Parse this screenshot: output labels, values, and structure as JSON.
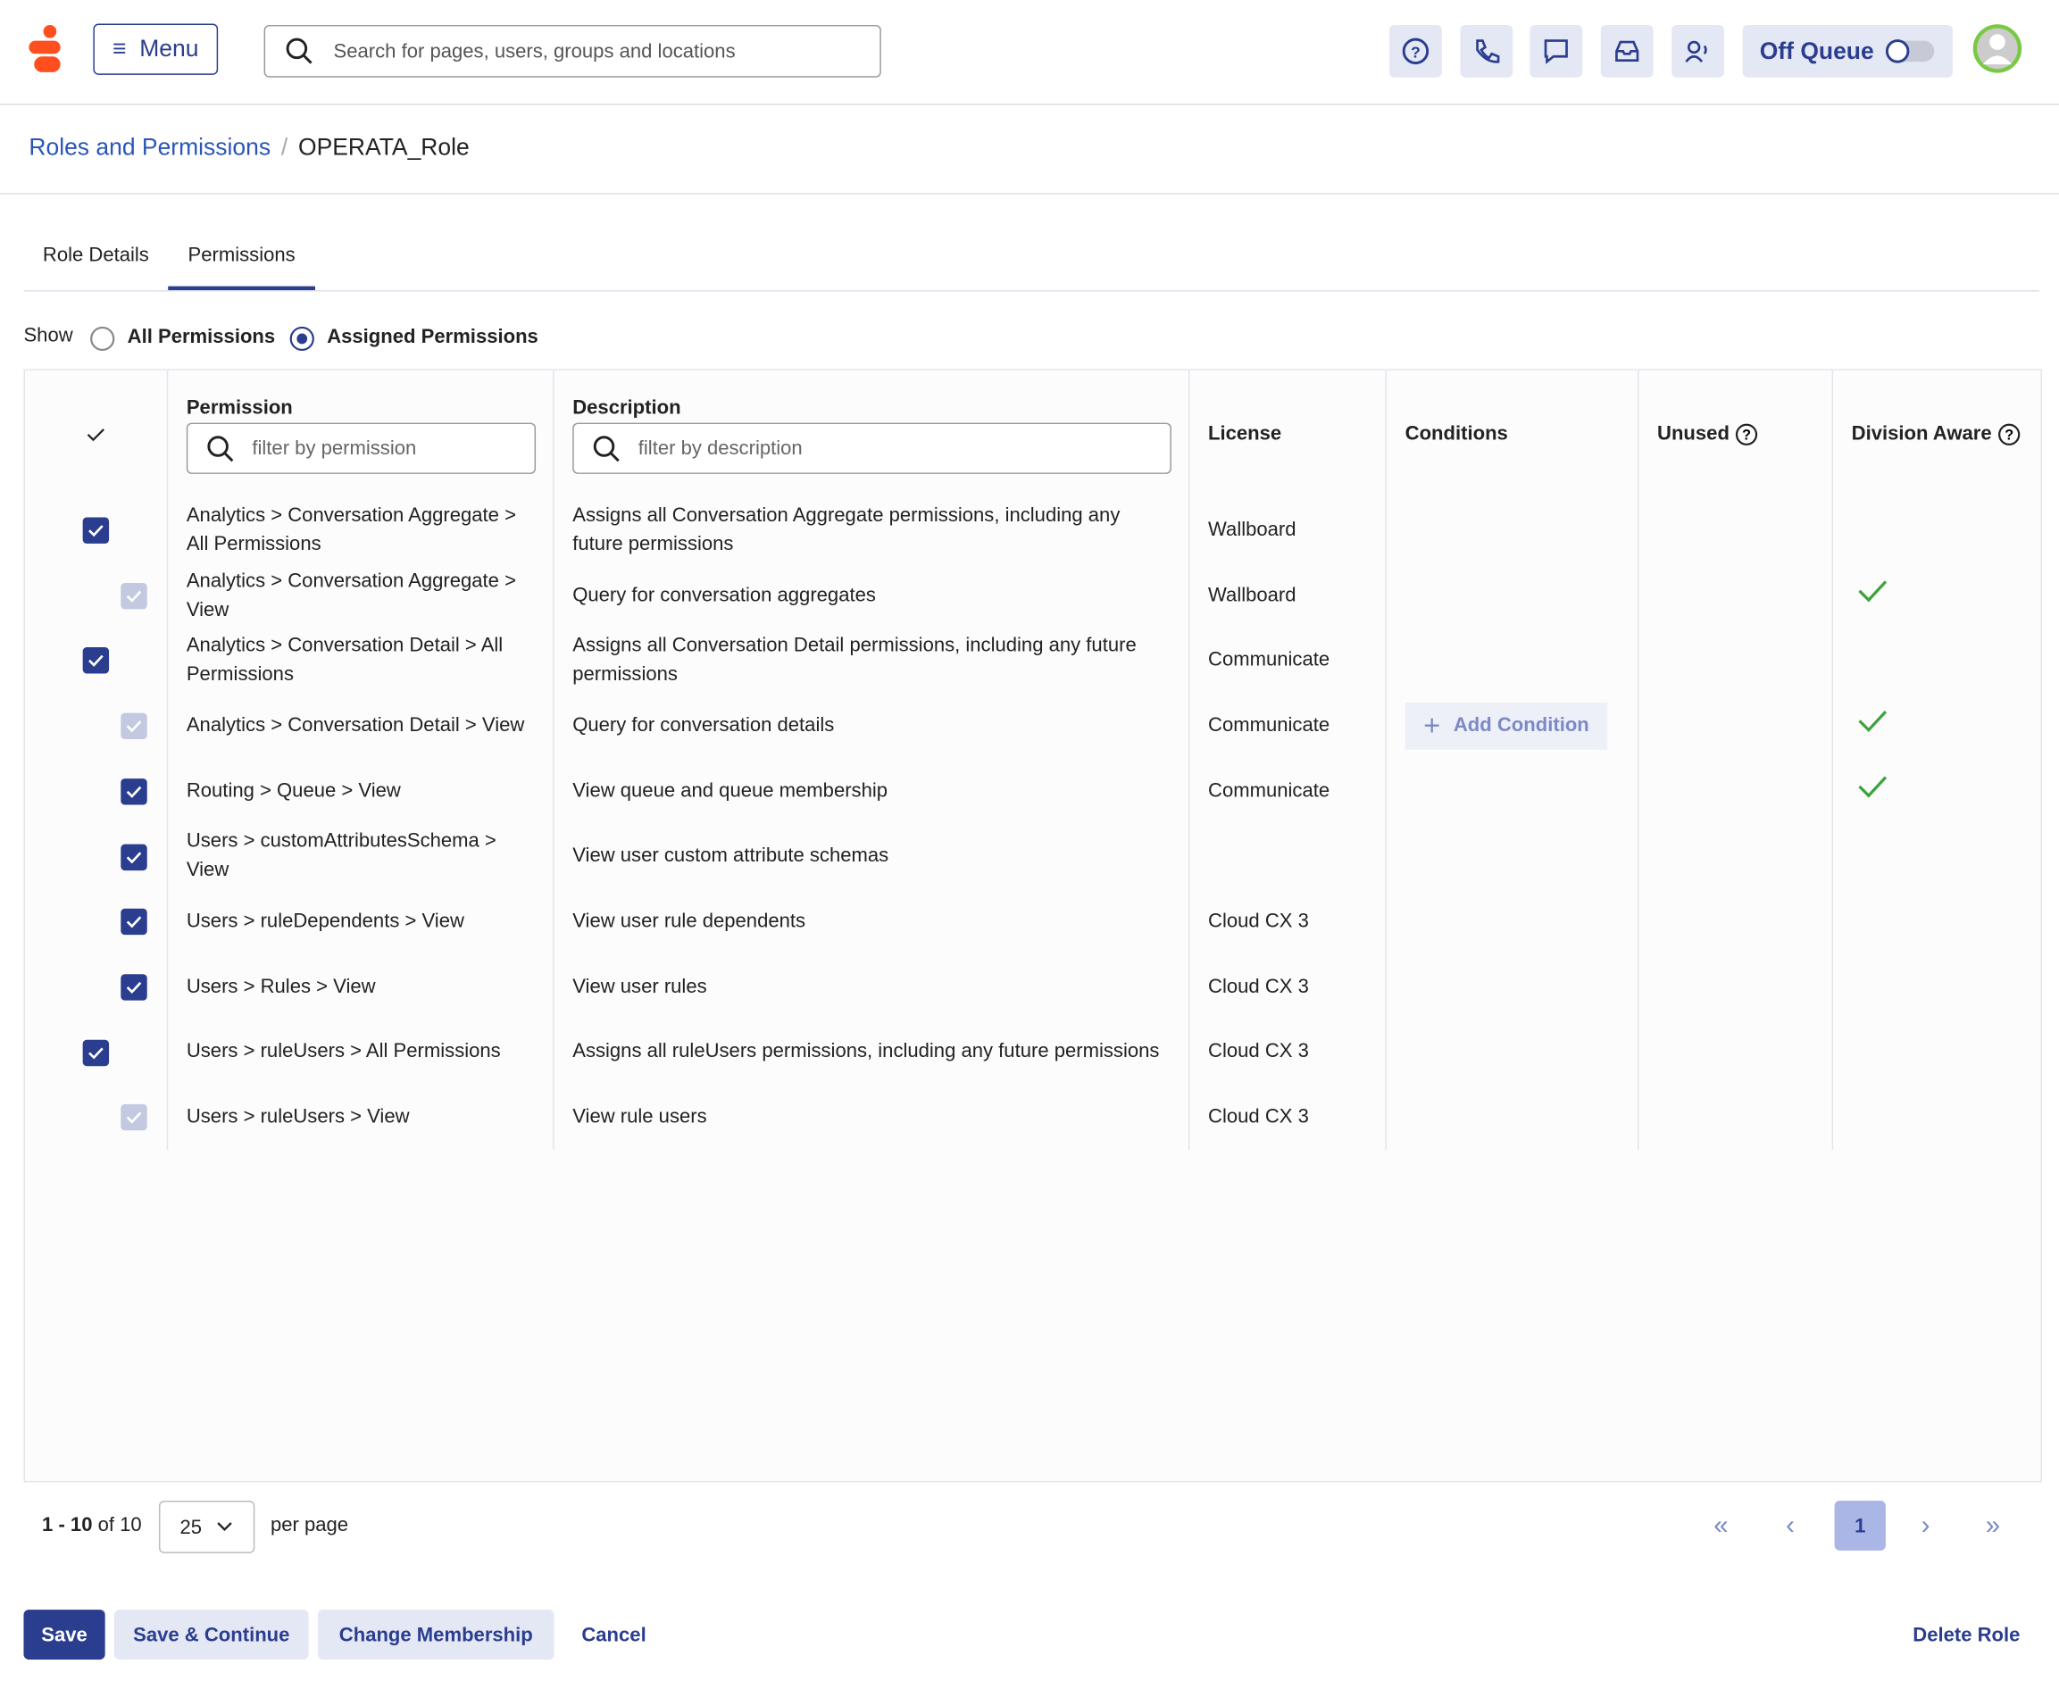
{
  "header": {
    "menu": "Menu",
    "search_placeholder": "Search for pages, users, groups and locations",
    "status": "Off Queue"
  },
  "breadcrumb": [
    "Roles and Permissions",
    "OPERATA_Role"
  ],
  "tabs": {
    "items": [
      "Role Details",
      "Permissions"
    ],
    "active": 1
  },
  "show": {
    "label": "Show",
    "options": [
      "All Permissions",
      "Assigned Permissions"
    ],
    "selected": 1
  },
  "table": {
    "columns": [
      "Permission",
      "Description",
      "License",
      "Conditions",
      "Unused",
      "Division Aware"
    ],
    "filters": [
      "filter by permission",
      "filter by description"
    ],
    "rows": [
      {
        "permission": "Analytics > Conversation Aggregate > All Permissions",
        "description": "Assigns all Conversation Aggregate permissions, including any future permissions",
        "license": "Wallboard",
        "check": "checked",
        "indent": false,
        "division_aware": false
      },
      {
        "permission": "Analytics > Conversation Aggregate > View",
        "description": "Query for conversation aggregates",
        "license": "Wallboard",
        "check": "inherited",
        "indent": true,
        "division_aware": true
      },
      {
        "permission": "Analytics > Conversation Detail > All Permissions",
        "description": "Assigns all Conversation Detail permissions, including any future permissions",
        "license": "Communicate",
        "check": "checked",
        "indent": false,
        "division_aware": false
      },
      {
        "permission": "Analytics > Conversation Detail > View",
        "description": "Query for conversation details",
        "license": "Communicate",
        "condition": "Add Condition",
        "check": "inherited",
        "indent": true,
        "division_aware": true
      },
      {
        "permission": "Routing > Queue > View",
        "description": "View queue and queue membership",
        "license": "Communicate",
        "check": "checked",
        "indent": true,
        "division_aware": true
      },
      {
        "permission": "Users > customAttributesSchema > View",
        "description": "View user custom attribute schemas",
        "check": "checked",
        "indent": true,
        "division_aware": false
      },
      {
        "permission": "Users > ruleDependents > View",
        "description": "View user rule dependents",
        "license": "Cloud CX 3",
        "check": "checked",
        "indent": true,
        "division_aware": false
      },
      {
        "permission": "Users > Rules > View",
        "description": "View user rules",
        "license": "Cloud CX 3",
        "check": "checked",
        "indent": true,
        "division_aware": false
      },
      {
        "permission": "Users > ruleUsers > All Permissions",
        "description": "Assigns all ruleUsers permissions, including any future permissions",
        "license": "Cloud CX 3",
        "check": "checked",
        "indent": false,
        "division_aware": false
      },
      {
        "permission": "Users > ruleUsers > View",
        "description": "View rule users",
        "license": "Cloud CX 3",
        "check": "inherited",
        "indent": true,
        "division_aware": false
      }
    ]
  },
  "pagination": {
    "range": "1 - 10",
    "total": "of 10",
    "per_page": "25",
    "per_page_label": "per page",
    "page": "1"
  },
  "footer": {
    "buttons": [
      "Save",
      "Save & Continue",
      "Change Membership",
      "Cancel"
    ],
    "delete": "Delete Role"
  }
}
